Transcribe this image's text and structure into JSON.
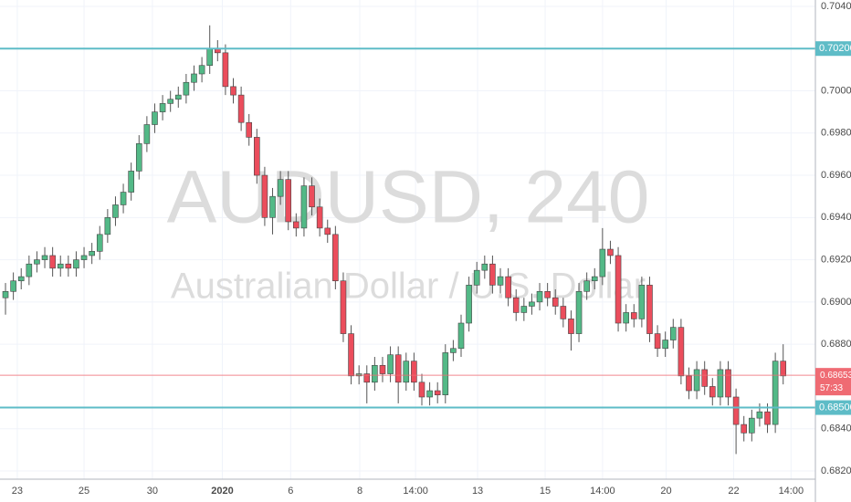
{
  "chart_data": {
    "type": "candlestick",
    "title": "AUDUSD, 240",
    "subtitle": "Australian Dollar / U.S. Dollar",
    "up_color": "#53b987",
    "down_color": "#eb4d5c",
    "open": [
      0.6902,
      0.6905,
      0.691,
      0.6912,
      0.6918,
      0.692,
      0.6922,
      0.6916,
      0.6918,
      0.6916,
      0.692,
      0.6922,
      0.6924,
      0.6932,
      0.694,
      0.6946,
      0.6952,
      0.6962,
      0.6975,
      0.6984,
      0.699,
      0.6994,
      0.6996,
      0.6998,
      0.7004,
      0.7008,
      0.7012,
      0.702,
      0.7018,
      0.7002,
      0.6998,
      0.6985,
      0.6978,
      0.696,
      0.694,
      0.695,
      0.6958,
      0.6938,
      0.6935,
      0.6955,
      0.6945,
      0.6935,
      0.6932,
      0.691,
      0.6885,
      0.6865,
      0.6866,
      0.6862,
      0.687,
      0.6866,
      0.6875,
      0.6862,
      0.6872,
      0.6862,
      0.6855,
      0.6858,
      0.6856,
      0.6876,
      0.6878,
      0.689,
      0.6908,
      0.6915,
      0.6918,
      0.6908,
      0.6912,
      0.6902,
      0.6895,
      0.6898,
      0.69,
      0.6905,
      0.6902,
      0.6898,
      0.6892,
      0.6885,
      0.6905,
      0.691,
      0.6912,
      0.6925,
      0.6922,
      0.689,
      0.6895,
      0.6892,
      0.6908,
      0.6885,
      0.6878,
      0.6882,
      0.6888,
      0.6865,
      0.6858,
      0.6868,
      0.686,
      0.6855,
      0.6868,
      0.6855,
      0.6842,
      0.6838,
      0.6845,
      0.6848,
      0.6842,
      0.6872
    ],
    "high": [
      0.6909,
      0.6914,
      0.6916,
      0.6922,
      0.6924,
      0.6926,
      0.6926,
      0.6922,
      0.6922,
      0.6924,
      0.6926,
      0.6928,
      0.6936,
      0.6944,
      0.695,
      0.6956,
      0.6966,
      0.6979,
      0.6988,
      0.6994,
      0.6998,
      0.7,
      0.7002,
      0.7008,
      0.7012,
      0.7016,
      0.7031,
      0.7024,
      0.7022,
      0.7006,
      0.7002,
      0.6989,
      0.6982,
      0.6964,
      0.6954,
      0.6962,
      0.6962,
      0.6942,
      0.6959,
      0.6959,
      0.6949,
      0.6939,
      0.6936,
      0.6914,
      0.6889,
      0.687,
      0.687,
      0.6874,
      0.6874,
      0.6879,
      0.6879,
      0.6876,
      0.6876,
      0.6866,
      0.6862,
      0.6862,
      0.688,
      0.6882,
      0.6894,
      0.6912,
      0.6919,
      0.6922,
      0.6922,
      0.6916,
      0.6916,
      0.6906,
      0.6902,
      0.6904,
      0.6909,
      0.6909,
      0.6906,
      0.6902,
      0.6896,
      0.6909,
      0.6914,
      0.6916,
      0.6935,
      0.6929,
      0.6926,
      0.6899,
      0.6899,
      0.6912,
      0.6912,
      0.6889,
      0.6886,
      0.6892,
      0.6892,
      0.6869,
      0.6872,
      0.6872,
      0.6864,
      0.6872,
      0.6872,
      0.6859,
      0.6846,
      0.6849,
      0.6852,
      0.6852,
      0.6876,
      0.688
    ],
    "low": [
      0.6894,
      0.6901,
      0.6906,
      0.6908,
      0.6914,
      0.6916,
      0.6912,
      0.6912,
      0.6912,
      0.6912,
      0.6916,
      0.6918,
      0.692,
      0.6928,
      0.6936,
      0.6942,
      0.6948,
      0.6958,
      0.6971,
      0.698,
      0.6986,
      0.699,
      0.6992,
      0.6994,
      0.7,
      0.7004,
      0.7008,
      0.7014,
      0.6998,
      0.6994,
      0.6981,
      0.6974,
      0.6956,
      0.6936,
      0.6932,
      0.6946,
      0.6934,
      0.6931,
      0.6931,
      0.6941,
      0.6931,
      0.6928,
      0.6906,
      0.6881,
      0.6861,
      0.6861,
      0.6852,
      0.6858,
      0.6862,
      0.6862,
      0.6852,
      0.6858,
      0.6858,
      0.6851,
      0.6851,
      0.6852,
      0.6852,
      0.6872,
      0.6874,
      0.6886,
      0.6904,
      0.6911,
      0.6904,
      0.6904,
      0.6898,
      0.6891,
      0.6891,
      0.6894,
      0.6896,
      0.6898,
      0.6894,
      0.6888,
      0.6877,
      0.6881,
      0.6901,
      0.6906,
      0.6908,
      0.6918,
      0.6886,
      0.6886,
      0.6888,
      0.6888,
      0.6881,
      0.6874,
      0.6874,
      0.6878,
      0.6861,
      0.6854,
      0.6854,
      0.6856,
      0.6851,
      0.6851,
      0.6851,
      0.6828,
      0.6834,
      0.6834,
      0.6841,
      0.6838,
      0.6838,
      0.6861
    ],
    "close": [
      0.6905,
      0.691,
      0.6912,
      0.6918,
      0.692,
      0.6922,
      0.6916,
      0.6918,
      0.6916,
      0.692,
      0.6922,
      0.6924,
      0.6932,
      0.694,
      0.6946,
      0.6952,
      0.6962,
      0.6975,
      0.6984,
      0.699,
      0.6994,
      0.6996,
      0.6998,
      0.7004,
      0.7008,
      0.7012,
      0.702,
      0.7018,
      0.7002,
      0.6998,
      0.6985,
      0.6978,
      0.696,
      0.694,
      0.695,
      0.6958,
      0.6938,
      0.6935,
      0.6955,
      0.6945,
      0.6935,
      0.6932,
      0.691,
      0.6885,
      0.6865,
      0.6866,
      0.6862,
      0.687,
      0.6866,
      0.6875,
      0.6862,
      0.6872,
      0.6862,
      0.6855,
      0.6858,
      0.6856,
      0.6876,
      0.6878,
      0.689,
      0.6908,
      0.6915,
      0.6918,
      0.6908,
      0.6912,
      0.6902,
      0.6895,
      0.6898,
      0.69,
      0.6905,
      0.6902,
      0.6898,
      0.6892,
      0.6885,
      0.6905,
      0.691,
      0.6912,
      0.6925,
      0.6922,
      0.689,
      0.6895,
      0.6892,
      0.6908,
      0.6885,
      0.6878,
      0.6882,
      0.6888,
      0.6865,
      0.6858,
      0.6868,
      0.686,
      0.6855,
      0.6868,
      0.6855,
      0.6842,
      0.6838,
      0.6845,
      0.6848,
      0.6842,
      0.6872,
      0.6865
    ],
    "xlim": [
      -0.7,
      103.1
    ],
    "xticks": [
      {
        "value": 1.5,
        "label": "23"
      },
      {
        "value": 10.0,
        "label": "25"
      },
      {
        "value": 18.7,
        "label": "30"
      },
      {
        "value": 27.6,
        "label": "2020"
      },
      {
        "value": 36.3,
        "label": "6"
      },
      {
        "value": 45.1,
        "label": "8"
      },
      {
        "value": 52.2,
        "label": "14:00"
      },
      {
        "value": 60.1,
        "label": "13"
      },
      {
        "value": 68.7,
        "label": "15"
      },
      {
        "value": 76.0,
        "label": "14:00"
      },
      {
        "value": 84.1,
        "label": "20"
      },
      {
        "value": 92.7,
        "label": "22"
      },
      {
        "value": 100.0,
        "label": "14:00"
      }
    ],
    "ylim": [
      0.68161,
      0.7043
    ],
    "yticks": [
      {
        "value": 0.704,
        "label": "0.70400"
      },
      {
        "value": 0.7,
        "label": "0.70000"
      },
      {
        "value": 0.698,
        "label": "0.69800"
      },
      {
        "value": 0.696,
        "label": "0.69600"
      },
      {
        "value": 0.694,
        "label": "0.69400"
      },
      {
        "value": 0.692,
        "label": "0.69200"
      },
      {
        "value": 0.69,
        "label": "0.69000"
      },
      {
        "value": 0.688,
        "label": "0.68800"
      },
      {
        "value": 0.684,
        "label": "0.68400"
      },
      {
        "value": 0.682,
        "label": "0.68200"
      }
    ],
    "grid": true,
    "hlines": [
      {
        "value": 0.702,
        "label": "0.70200",
        "color": "#5ebcc7"
      },
      {
        "value": 0.685,
        "label": "0.68500",
        "color": "#5ebcc7"
      }
    ],
    "last_price": {
      "value": 0.68653,
      "countdown": "57:33",
      "color": "#ef6b73"
    }
  }
}
